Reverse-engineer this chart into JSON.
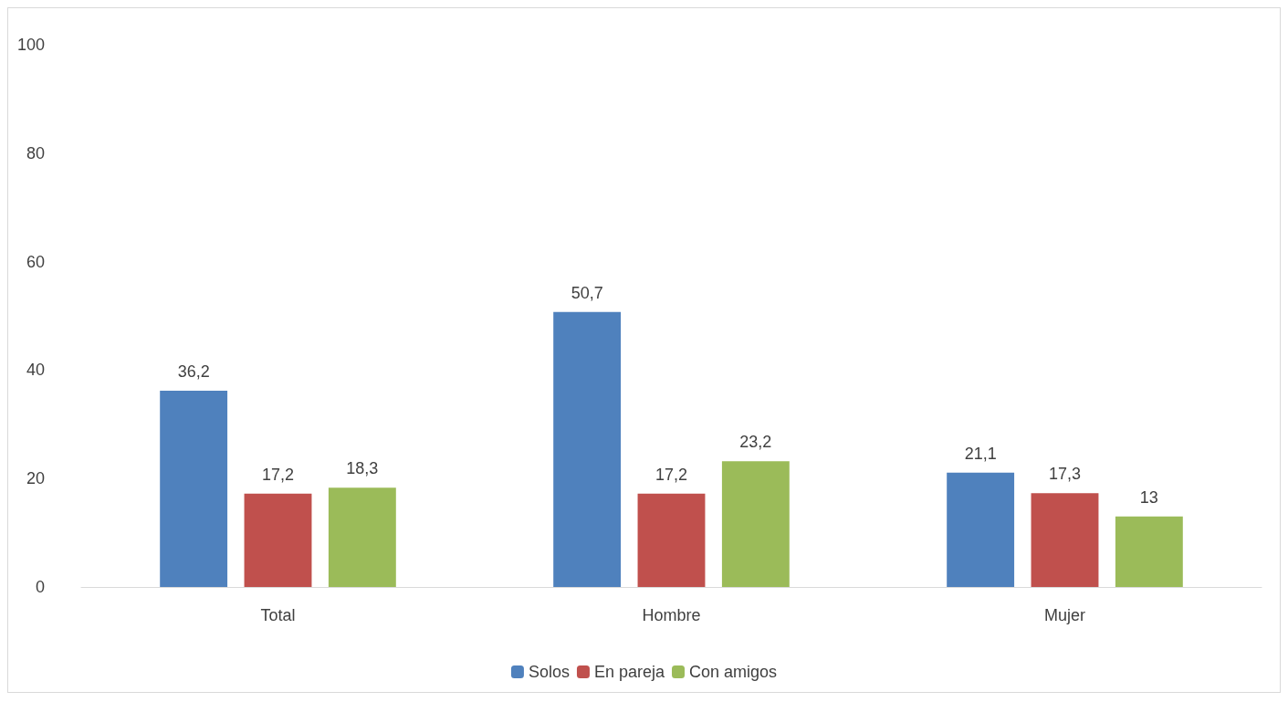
{
  "chart_data": {
    "type": "bar",
    "categories": [
      "Total",
      "Hombre",
      "Mujer"
    ],
    "series": [
      {
        "name": "Solos",
        "color": "#4f81bd",
        "values": [
          36.2,
          50.7,
          21.1
        ],
        "value_labels": [
          "36,2",
          "50,7",
          "21,1"
        ]
      },
      {
        "name": "En pareja",
        "color": "#c0504d",
        "values": [
          17.2,
          17.2,
          17.3
        ],
        "value_labels": [
          "17,2",
          "17,2",
          "17,3"
        ]
      },
      {
        "name": "Con amigos",
        "color": "#9bbb59",
        "values": [
          18.3,
          23.2,
          13
        ],
        "value_labels": [
          "18,3",
          "23,2",
          "13"
        ]
      }
    ],
    "ylim": [
      0,
      100
    ],
    "yticks": [
      0,
      20,
      40,
      60,
      80,
      100
    ],
    "grid": false,
    "legend": "bottom"
  }
}
